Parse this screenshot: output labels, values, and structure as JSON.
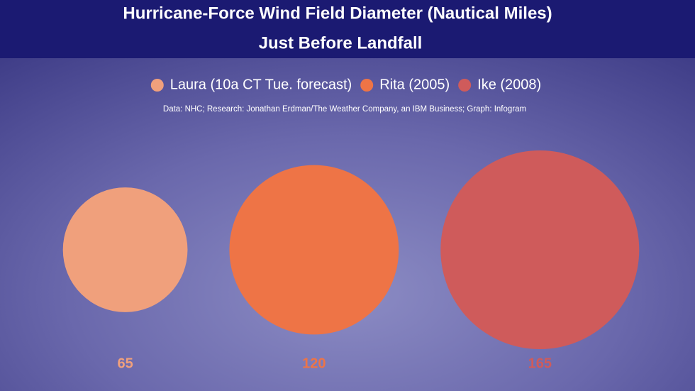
{
  "chart_data": {
    "type": "bubble",
    "title": "Hurricane-Force Wind Field Diameter (Nautical Miles)",
    "subtitle": "Just Before Landfall",
    "source": "Data: NHC; Research: Jonathan Erdman/The Weather Company, an IBM Business; Graph: Infogram",
    "series": [
      {
        "name": "Laura (10a CT Tue. forecast)",
        "color": "#f0a07c",
        "values": [
          65
        ]
      },
      {
        "name": "Rita (2005)",
        "color": "#ee7446",
        "values": [
          120
        ]
      },
      {
        "name": "Ike (2008)",
        "color": "#cf5b5b",
        "values": [
          165
        ]
      }
    ]
  }
}
